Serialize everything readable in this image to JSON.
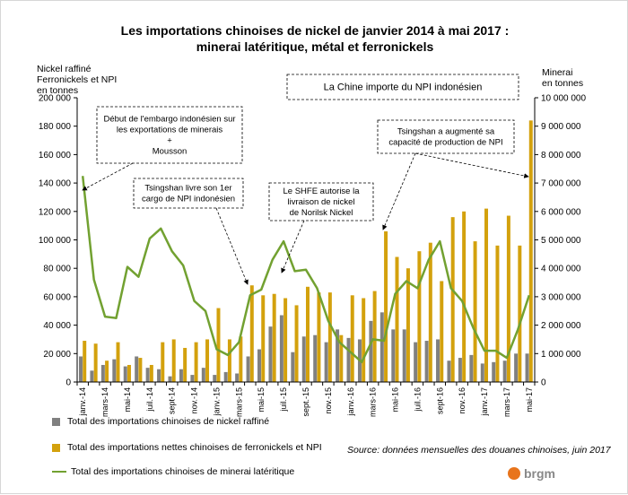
{
  "title_line1": "Les importations chinoises de nickel de janvier 2014 à mai 2017 :",
  "title_line2": "minerai latéritique, métal et ferronickels",
  "left_axis_title": [
    "Nickel raffiné",
    "Ferronickels et NPI",
    "en tonnes"
  ],
  "right_axis_title": [
    "Minerai",
    "en tonnes"
  ],
  "source": "Source: données mensuelles des douanes chinoises,  juin 2017",
  "logo_text": "brgm",
  "colors": {
    "refined": "#808080",
    "npi": "#d3a10d",
    "ore": "#72a131"
  },
  "legend": {
    "refined": "Total des importations chinoises de nickel raffiné",
    "npi": "Total des importations nettes chinoises de ferronickels et NPI",
    "ore": "Total des importations chinoises de minerai latéritique"
  },
  "annotations": [
    {
      "id": "china",
      "lines": [
        "La Chine importe du NPI  indonésien"
      ]
    },
    {
      "id": "ban",
      "lines": [
        "Début de l'embargo indonésien sur",
        "les exportations de minerais",
        "+",
        "Mousson"
      ]
    },
    {
      "id": "tsingshan1",
      "lines": [
        "Tsingshan livre son 1er",
        "cargo de NPI indonésien"
      ]
    },
    {
      "id": "shfe",
      "lines": [
        "Le SHFE autorise la",
        "livraison de nickel",
        "de Norilsk Nickel"
      ]
    },
    {
      "id": "tsingshan2",
      "lines": [
        "Tsingshan a augmenté sa",
        "capacité de production de NPI"
      ]
    }
  ],
  "chart_data": {
    "type": "bar",
    "title": "Les importations chinoises de nickel de janvier 2014 à mai 2017 : minerai latéritique, métal et ferronickels",
    "categories": [
      "janv.-14",
      "févr.-14",
      "mars-14",
      "avr.-14",
      "mai-14",
      "juin-14",
      "juil.-14",
      "août-14",
      "sept.-14",
      "oct.-14",
      "nov.-14",
      "déc.-14",
      "janv.-15",
      "févr.-15",
      "mars-15",
      "avr.-15",
      "mai-15",
      "juin-15",
      "juil.-15",
      "août-15",
      "sept.-15",
      "oct.-15",
      "nov.-15",
      "déc.-15",
      "janv.-16",
      "févr.-16",
      "mars-16",
      "avr.-16",
      "mai-16",
      "juin-16",
      "juil.-16",
      "août-16",
      "sept.-16",
      "oct.-16",
      "nov.-16",
      "déc.-16",
      "janv.-17",
      "févr.-17",
      "mars-17",
      "avr.-17",
      "mai-17"
    ],
    "x_tick_labels": [
      "janv.-14",
      "mars-14",
      "mai-14",
      "juil.-14",
      "sept-14",
      "nov.-14",
      "janv.-15",
      "mars-15",
      "mai-15",
      "juil.-15",
      "sept.-15",
      "nov.-15",
      "janv.-16",
      "mars-16",
      "mai-16",
      "juil.-16",
      "sept-16",
      "nov.-16",
      "janv.-17",
      "mars-17",
      "mai-17"
    ],
    "y_left": {
      "label": "Nickel raffiné / Ferronickels et NPI (tonnes)",
      "lim": [
        0,
        200000
      ],
      "ticks": [
        "0",
        "20 000",
        "40 000",
        "60 000",
        "80 000",
        "100 000",
        "120 000",
        "140 000",
        "160 000",
        "180 000",
        "200 000"
      ]
    },
    "y_right": {
      "label": "Minerai (tonnes)",
      "lim": [
        0,
        10000000
      ],
      "ticks": [
        "0",
        "1 000 000",
        "2 000 000",
        "3 000 000",
        "4 000 000",
        "5 000 000",
        "6 000 000",
        "7 000 000",
        "8 000 000",
        "9 000 000",
        "10 000 000"
      ]
    },
    "series": [
      {
        "name": "Total des importations chinoises de nickel raffiné",
        "type": "bar",
        "axis": "left",
        "values": [
          18000,
          8000,
          12000,
          16000,
          11000,
          18000,
          10000,
          9000,
          4000,
          9000,
          5000,
          10000,
          5000,
          7000,
          6000,
          18000,
          23000,
          39000,
          47000,
          21000,
          32000,
          33000,
          28000,
          37000,
          31000,
          30000,
          43000,
          49000,
          37000,
          37000,
          28000,
          29000,
          30000,
          15000,
          17000,
          19000,
          13000,
          14000,
          15000,
          20000,
          20000
        ]
      },
      {
        "name": "Total des importations nettes chinoises de ferronickels et NPI",
        "type": "bar",
        "axis": "left",
        "values": [
          29000,
          27000,
          15000,
          28000,
          12000,
          17000,
          12000,
          28000,
          30000,
          24000,
          28000,
          30000,
          52000,
          30000,
          32000,
          68000,
          61000,
          62000,
          59000,
          54000,
          67000,
          63000,
          63000,
          33000,
          61000,
          59000,
          64000,
          106000,
          88000,
          80000,
          92000,
          98000,
          71000,
          116000,
          120000,
          99000,
          122000,
          96000,
          117000,
          96000,
          184000
        ]
      },
      {
        "name": "Total des importations chinoises de minerai latéritique",
        "type": "line",
        "axis": "right",
        "values": [
          7250000,
          3600000,
          2300000,
          2250000,
          4050000,
          3700000,
          5050000,
          5400000,
          4600000,
          4100000,
          2850000,
          2500000,
          1150000,
          950000,
          1400000,
          3050000,
          3250000,
          4300000,
          4950000,
          3900000,
          3950000,
          3300000,
          2150000,
          1400000,
          1050000,
          700000,
          1500000,
          1450000,
          3100000,
          3550000,
          3300000,
          4300000,
          4950000,
          3300000,
          2850000,
          1900000,
          1100000,
          1100000,
          850000,
          1850000,
          3050000
        ]
      }
    ]
  }
}
